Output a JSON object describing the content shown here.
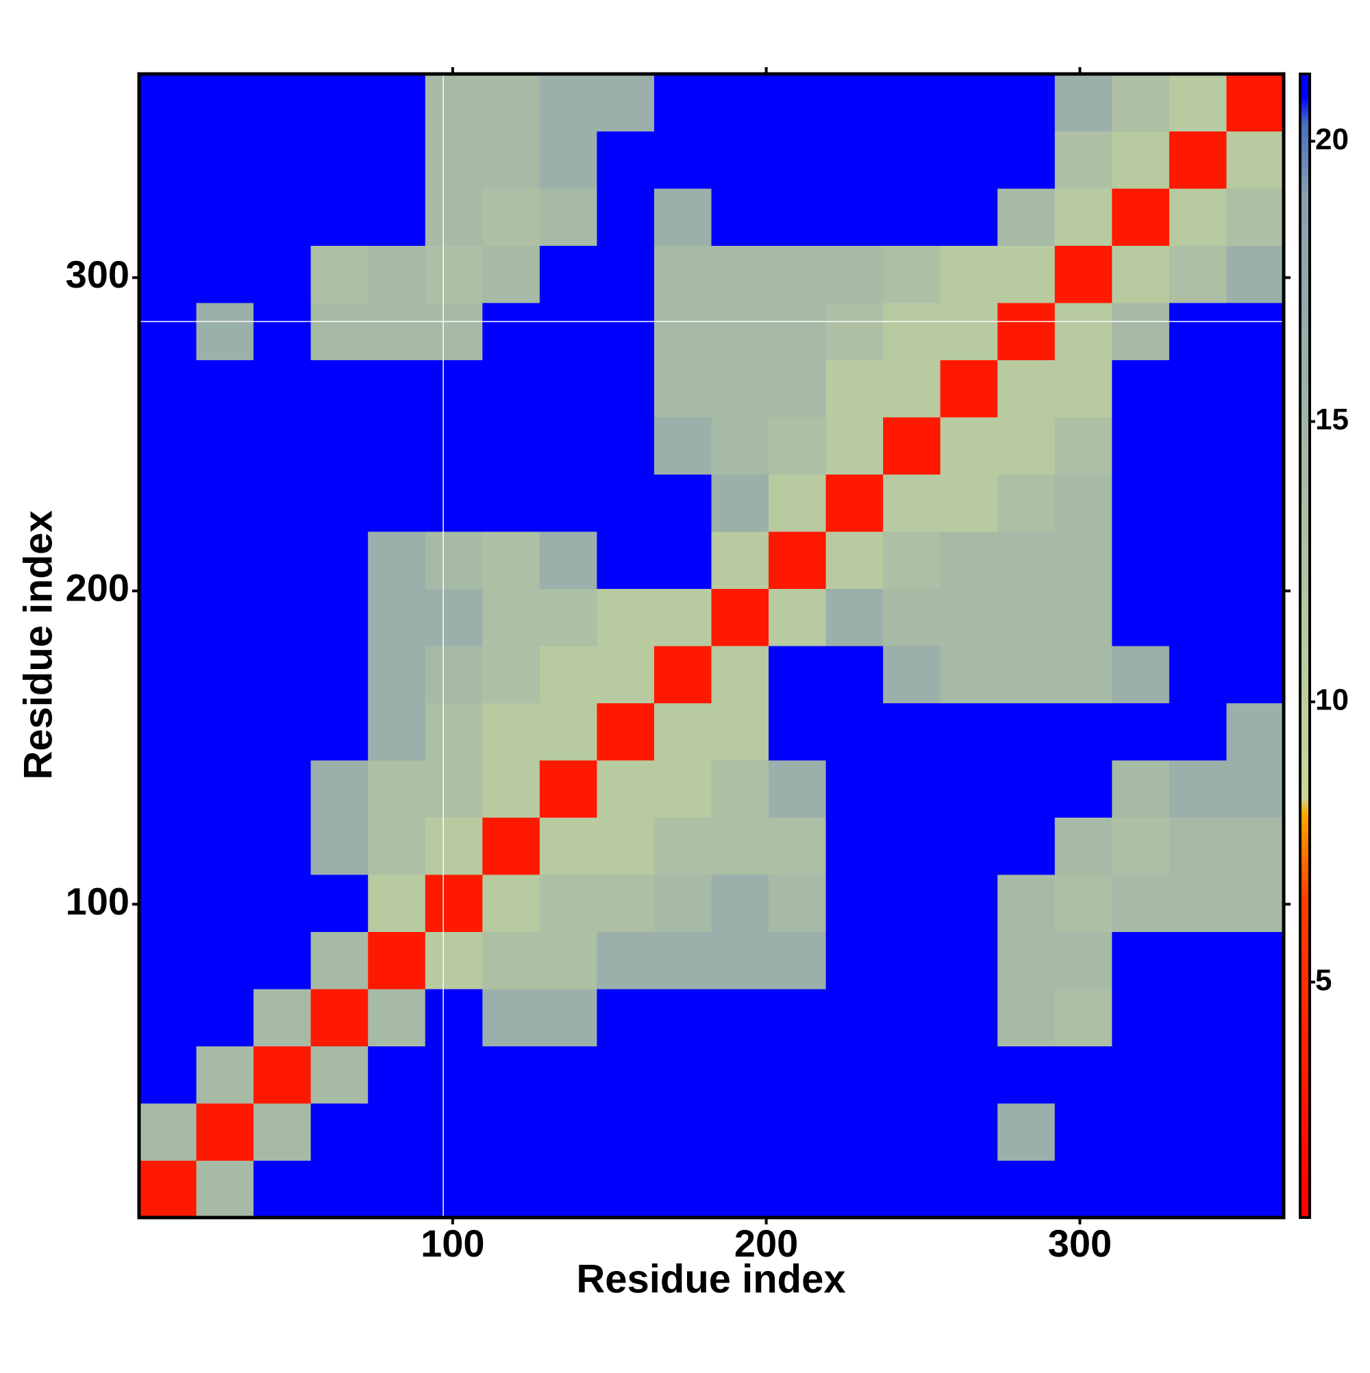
{
  "chart_data": {
    "type": "heatmap",
    "x_label": "Residue index",
    "y_label": "Residue index",
    "xlim": [
      0,
      365
    ],
    "ylim": [
      0,
      365
    ],
    "xticks": [
      100,
      200,
      300
    ],
    "yticks": [
      100,
      200,
      300
    ],
    "xedges": [
      0,
      18.25,
      36.5,
      54.75,
      73,
      91.25,
      109.5,
      127.75,
      146,
      164.25,
      182.5,
      200.75,
      219,
      237.25,
      255.5,
      273.75,
      292,
      310.25,
      328.5,
      346.75,
      365
    ],
    "yedges": [
      0,
      18.25,
      36.5,
      54.75,
      73,
      91.25,
      109.5,
      127.75,
      146,
      164.25,
      182.5,
      200.75,
      219,
      237.25,
      255.5,
      273.75,
      292,
      310.25,
      328.5,
      346.75,
      365
    ],
    "z": [
      [
        3,
        14,
        21,
        21,
        21,
        21,
        21,
        21,
        21,
        21,
        21,
        21,
        21,
        21,
        21,
        21,
        21,
        21,
        21,
        21
      ],
      [
        14,
        3,
        14,
        21,
        21,
        21,
        21,
        21,
        21,
        21,
        21,
        21,
        21,
        21,
        21,
        16,
        21,
        21,
        21,
        21
      ],
      [
        21,
        14,
        3,
        14,
        21,
        21,
        21,
        21,
        21,
        21,
        21,
        21,
        21,
        21,
        21,
        21,
        21,
        21,
        21,
        21
      ],
      [
        21,
        21,
        14,
        3,
        14,
        21,
        16,
        16,
        21,
        21,
        21,
        21,
        21,
        21,
        21,
        14,
        13,
        21,
        21,
        21
      ],
      [
        21,
        21,
        21,
        14,
        3,
        11,
        13,
        13,
        16,
        16,
        16,
        16,
        21,
        21,
        21,
        14,
        14,
        21,
        21,
        21
      ],
      [
        21,
        21,
        21,
        21,
        11,
        3,
        11,
        13,
        13,
        14,
        16,
        14,
        21,
        21,
        21,
        14,
        13,
        14,
        14,
        14
      ],
      [
        21,
        21,
        21,
        16,
        13,
        11,
        3,
        11,
        11,
        13,
        13,
        13,
        21,
        21,
        21,
        21,
        14,
        13,
        14,
        14
      ],
      [
        21,
        21,
        21,
        16,
        13,
        13,
        11,
        3,
        11,
        11,
        13,
        16,
        21,
        21,
        21,
        21,
        21,
        14,
        16,
        16
      ],
      [
        21,
        21,
        21,
        21,
        16,
        13,
        11,
        11,
        3,
        11,
        11,
        21,
        21,
        21,
        21,
        21,
        21,
        21,
        21,
        16
      ],
      [
        21,
        21,
        21,
        21,
        16,
        14,
        13,
        11,
        11,
        3,
        11,
        21,
        21,
        16,
        14,
        14,
        14,
        16,
        21,
        21
      ],
      [
        21,
        21,
        21,
        21,
        16,
        16,
        13,
        13,
        11,
        11,
        3,
        11,
        16,
        14,
        14,
        14,
        14,
        21,
        21,
        21
      ],
      [
        21,
        21,
        21,
        21,
        16,
        14,
        13,
        16,
        21,
        21,
        11,
        3,
        11,
        13,
        14,
        14,
        14,
        21,
        21,
        21
      ],
      [
        21,
        21,
        21,
        21,
        21,
        21,
        21,
        21,
        21,
        21,
        16,
        11,
        3,
        11,
        11,
        13,
        14,
        21,
        21,
        21
      ],
      [
        21,
        21,
        21,
        21,
        21,
        21,
        21,
        21,
        21,
        16,
        14,
        13,
        11,
        3,
        11,
        11,
        13,
        21,
        21,
        21
      ],
      [
        21,
        21,
        21,
        21,
        21,
        21,
        21,
        21,
        21,
        14,
        14,
        14,
        11,
        11,
        3,
        11,
        11,
        21,
        21,
        21
      ],
      [
        21,
        16,
        21,
        14,
        14,
        14,
        21,
        21,
        21,
        14,
        14,
        14,
        13,
        11,
        11,
        3,
        11,
        14,
        21,
        21
      ],
      [
        21,
        21,
        21,
        13,
        14,
        13,
        14,
        21,
        21,
        14,
        14,
        14,
        14,
        13,
        11,
        11,
        3,
        11,
        13,
        16
      ],
      [
        21,
        21,
        21,
        21,
        21,
        14,
        13,
        14,
        21,
        16,
        21,
        21,
        21,
        21,
        21,
        14,
        11,
        3,
        11,
        13
      ],
      [
        21,
        21,
        21,
        21,
        21,
        14,
        14,
        16,
        21,
        21,
        21,
        21,
        21,
        21,
        21,
        21,
        13,
        11,
        3,
        11
      ],
      [
        21,
        21,
        21,
        21,
        21,
        14,
        14,
        16,
        16,
        21,
        21,
        21,
        21,
        21,
        21,
        21,
        16,
        13,
        11,
        3
      ]
    ],
    "zlim": [
      0.8,
      21.2
    ],
    "zticks": [
      5,
      10,
      15,
      20
    ],
    "color_stops": [
      {
        "value": 0.8,
        "color": "#ff0000"
      },
      {
        "value": 6.5,
        "color": "#ff4000"
      },
      {
        "value": 8,
        "color": "#ffa500"
      },
      {
        "value": 8.3,
        "color": "#c8d89a"
      },
      {
        "value": 19,
        "color": "#8aa0b0"
      },
      {
        "value": 20.3,
        "color": "#4a6fc0"
      },
      {
        "value": 20.8,
        "color": "#0000ff"
      }
    ],
    "vlines": [
      97
    ],
    "hlines": [
      286
    ]
  }
}
